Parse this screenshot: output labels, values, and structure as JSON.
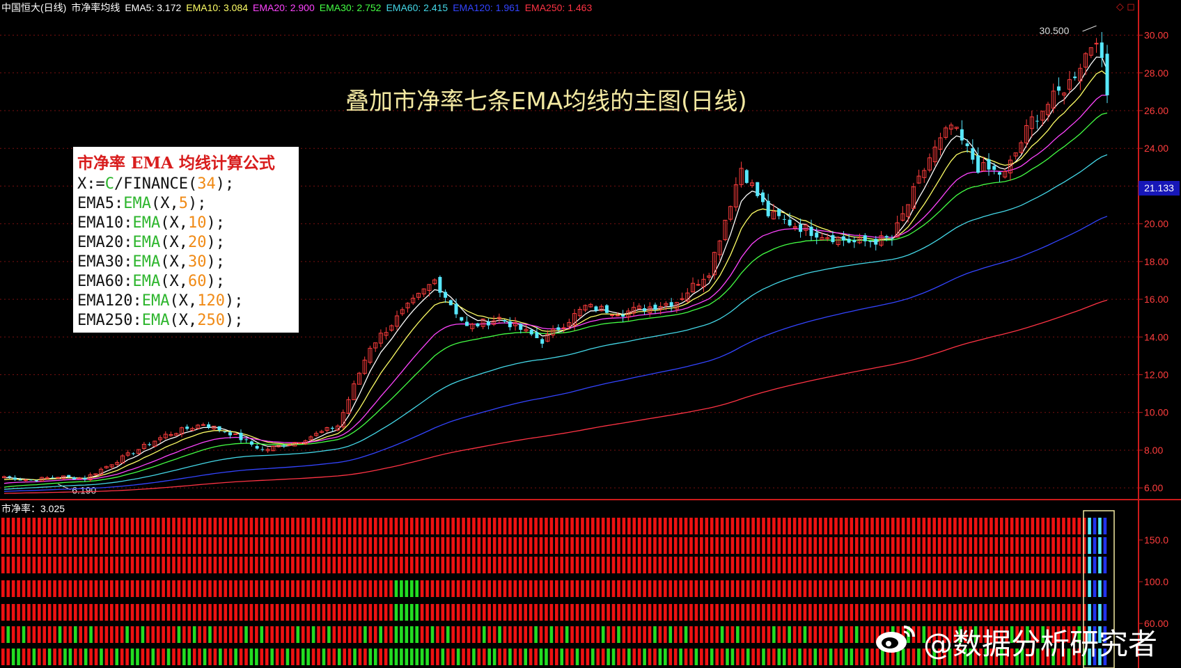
{
  "header": {
    "stock": "中国恒大(日线)",
    "indicator": "市净率均线",
    "ema_labels": [
      {
        "text": "EMA5: 3.172",
        "color": "#ffffff"
      },
      {
        "text": "EMA10: 3.084",
        "color": "#ffff66"
      },
      {
        "text": "EMA20: 2.900",
        "color": "#ff44ff"
      },
      {
        "text": "EMA30: 2.752",
        "color": "#44ff44"
      },
      {
        "text": "EMA60: 2.415",
        "color": "#44d8e8"
      },
      {
        "text": "EMA120: 1.961",
        "color": "#3344ff"
      },
      {
        "text": "EMA250: 1.463",
        "color": "#ff3344"
      }
    ]
  },
  "title": "叠加市净率七条EMA均线的主图(日线)",
  "formula": {
    "heading": "市净率 EMA 均线计算公式",
    "lines": [
      [
        {
          "t": "X:=",
          "c": ""
        },
        {
          "t": "C",
          "c": "g"
        },
        {
          "t": "/FINANCE(",
          "c": ""
        },
        {
          "t": "34",
          "c": "o"
        },
        {
          "t": ");",
          "c": ""
        }
      ],
      [
        {
          "t": "EMA5:",
          "c": ""
        },
        {
          "t": "EMA",
          "c": "g"
        },
        {
          "t": "(X,",
          "c": ""
        },
        {
          "t": "5",
          "c": "o"
        },
        {
          "t": ");",
          "c": ""
        }
      ],
      [
        {
          "t": "EMA10:",
          "c": ""
        },
        {
          "t": "EMA",
          "c": "g"
        },
        {
          "t": "(X,",
          "c": ""
        },
        {
          "t": "10",
          "c": "o"
        },
        {
          "t": ");",
          "c": ""
        }
      ],
      [
        {
          "t": "EMA20:",
          "c": ""
        },
        {
          "t": "EMA",
          "c": "g"
        },
        {
          "t": "(X,",
          "c": ""
        },
        {
          "t": "20",
          "c": "o"
        },
        {
          "t": ");",
          "c": ""
        }
      ],
      [
        {
          "t": "EMA30:",
          "c": ""
        },
        {
          "t": "EMA",
          "c": "g"
        },
        {
          "t": "(X,",
          "c": ""
        },
        {
          "t": "30",
          "c": "o"
        },
        {
          "t": ");",
          "c": ""
        }
      ],
      [
        {
          "t": "EMA60:",
          "c": ""
        },
        {
          "t": "EMA",
          "c": "g"
        },
        {
          "t": "(X,",
          "c": ""
        },
        {
          "t": "60",
          "c": "o"
        },
        {
          "t": ");",
          "c": ""
        }
      ],
      [
        {
          "t": "EMA120:",
          "c": ""
        },
        {
          "t": "EMA",
          "c": "g"
        },
        {
          "t": "(X,",
          "c": ""
        },
        {
          "t": "120",
          "c": "o"
        },
        {
          "t": ");",
          "c": ""
        }
      ],
      [
        {
          "t": "EMA250:",
          "c": ""
        },
        {
          "t": "EMA",
          "c": "g"
        },
        {
          "t": "(X,",
          "c": ""
        },
        {
          "t": "250",
          "c": "o"
        },
        {
          "t": ");",
          "c": ""
        }
      ]
    ]
  },
  "current_price_tag": "21.133",
  "sub_panel_label": "市净率：3.025",
  "watermark": "@数据分析研究者",
  "chart_data": {
    "type": "candlestick",
    "y_axis_ticks": [
      "6.00",
      "8.00",
      "10.00",
      "12.00",
      "14.00",
      "16.00",
      "18.00",
      "20.00",
      "22.00",
      "24.00",
      "26.00",
      "28.00",
      "30.00"
    ],
    "ylim": [
      5.6,
      31.2
    ],
    "high_label": "30.500",
    "low_label": "6.190",
    "sub_y_axis_ticks": [
      "60.00",
      "100.0",
      "150.0"
    ],
    "anchors": [
      [
        0,
        6.6
      ],
      [
        5,
        6.4
      ],
      [
        10,
        6.6
      ],
      [
        15,
        6.5
      ],
      [
        20,
        7.3
      ],
      [
        30,
        8.8
      ],
      [
        37,
        9.4
      ],
      [
        42,
        8.9
      ],
      [
        48,
        8.0
      ],
      [
        55,
        8.5
      ],
      [
        62,
        9.3
      ],
      [
        68,
        13.5
      ],
      [
        73,
        15.0
      ],
      [
        80,
        17.0
      ],
      [
        86,
        14.5
      ],
      [
        92,
        15.0
      ],
      [
        100,
        13.8
      ],
      [
        108,
        15.6
      ],
      [
        115,
        15.3
      ],
      [
        125,
        15.9
      ],
      [
        131,
        17.5
      ],
      [
        137,
        23.0
      ],
      [
        142,
        20.5
      ],
      [
        150,
        19.6
      ],
      [
        158,
        19.0
      ],
      [
        165,
        19.2
      ],
      [
        172,
        23.5
      ],
      [
        176,
        25.2
      ],
      [
        181,
        23.0
      ],
      [
        186,
        22.6
      ],
      [
        191,
        25.5
      ],
      [
        198,
        27.5
      ],
      [
        203,
        30.0
      ],
      [
        205,
        26.8
      ]
    ],
    "n_candles": 206,
    "colors": {
      "up": "#ff3d3d",
      "down": "#58e8ff",
      "grid": "#7a1010",
      "axis": "#cc1b1b",
      "bar_red": "#ee1111",
      "bar_green": "#22dd22"
    }
  }
}
